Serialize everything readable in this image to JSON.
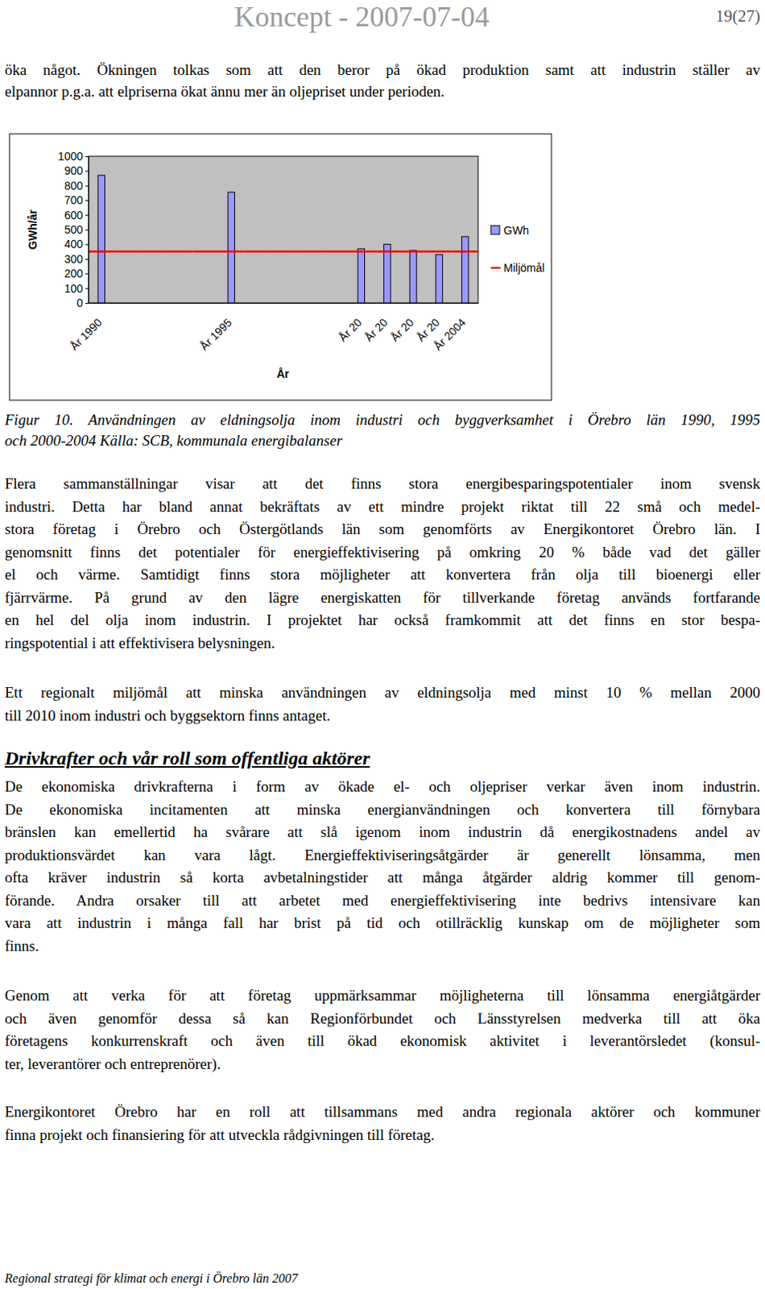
{
  "header": {
    "title": "Koncept - 2007-07-04",
    "page": "19(27)"
  },
  "intro": {
    "lines": [
      "öka något. Ökningen tolkas som att den beror på ökad produktion samt att industrin ställer av",
      "elpannor p.g.a. att elpriserna ökat ännu mer än oljepriset under perioden."
    ]
  },
  "chart_data": {
    "type": "bar",
    "categories": [
      "År 1990",
      null,
      null,
      null,
      null,
      "År 1995",
      null,
      null,
      null,
      null,
      "År 20",
      "År 20",
      "År 20",
      "År 20",
      "År 2004"
    ],
    "series": [
      {
        "name": "GWh",
        "color": "#9999ff",
        "values": [
          870,
          null,
          null,
          null,
          null,
          755,
          null,
          null,
          null,
          null,
          369,
          400,
          358,
          330,
          452
        ]
      },
      {
        "name": "Miljömål",
        "color": "#ff0000",
        "type": "line",
        "values": [
          350,
          350,
          350,
          350,
          350,
          350,
          350,
          350,
          350,
          350,
          350,
          350,
          350,
          350,
          350
        ]
      }
    ],
    "y_label": "GWh/år",
    "x_label": "År",
    "ylim": [
      0,
      1000
    ],
    "yticks": [
      0,
      100,
      200,
      300,
      400,
      500,
      600,
      700,
      800,
      900,
      1000
    ],
    "grid": false,
    "legend": "right"
  },
  "caption": {
    "lines": [
      "Figur 10. Användningen av eldningsolja inom industri och byggverksamhet i Örebro län 1990, 1995",
      "och 2000-2004 Källa: SCB, kommunala energibalanser"
    ]
  },
  "body1": [
    {
      "lines": [
        "Flera sammanställningar visar att det finns stora energibesparingspotentialer inom svensk",
        "industri. Detta har bland annat bekräftats av ett mindre projekt riktat till 22 små och medel-",
        "stora företag i Örebro och Östergötlands län som genomförts av Energikontoret Örebro län. I",
        "genomsnitt finns det potentialer för energieffektivisering på omkring 20 % både vad det gäller",
        "el och värme.  Samtidigt finns stora möjligheter att konvertera från olja till bioenergi eller",
        "fjärrvärme. På grund av den lägre energiskatten för tillverkande företag används fortfarande",
        "en hel del olja inom industrin. I projektet har också framkommit att det finns en stor bespa-",
        "ringspotential i att effektivisera belysningen."
      ]
    },
    {
      "lines": [
        "Ett regionalt miljömål att minska användningen av eldningsolja med minst 10 % mellan 2000",
        "till 2010 inom industri och byggsektorn finns antaget."
      ]
    }
  ],
  "heading": "Drivkrafter och vår roll som offentliga aktörer",
  "body2": [
    {
      "lines": [
        "De ekonomiska drivkrafterna i form av ökade el- och oljepriser verkar även inom industrin.",
        "De ekonomiska incitamenten att minska energianvändningen och konvertera till förnybara",
        "bränslen kan emellertid ha svårare att slå igenom inom industrin då energikostnadens andel av",
        "produktionsvärdet kan vara lågt. Energieffektiviseringsåtgärder är generellt lönsamma, men",
        "ofta kräver industrin så korta avbetalningstider att många åtgärder aldrig kommer till genom-",
        "förande. Andra orsaker till att arbetet med energieffektivisering inte bedrivs intensivare kan",
        "vara att industrin i många fall har brist på tid och otillräcklig kunskap om de möjligheter som",
        "finns."
      ]
    },
    {
      "lines": [
        "Genom att verka för att företag uppmärksammar möjligheterna till lönsamma energiåtgärder",
        "och även genomför dessa så kan Regionförbundet och Länsstyrelsen medverka till att öka",
        "företagens konkurrenskraft och även till ökad ekonomisk aktivitet i leverantörsledet (konsul-",
        "ter, leverantörer och entreprenörer)."
      ]
    },
    {
      "lines": [
        "Energikontoret Örebro har en roll att tillsammans med andra regionala aktörer och kommuner",
        "finna projekt och finansiering för att utveckla rådgivningen till företag."
      ]
    }
  ],
  "footer": "Regional strategi för klimat och energi i Örebro län 2007"
}
